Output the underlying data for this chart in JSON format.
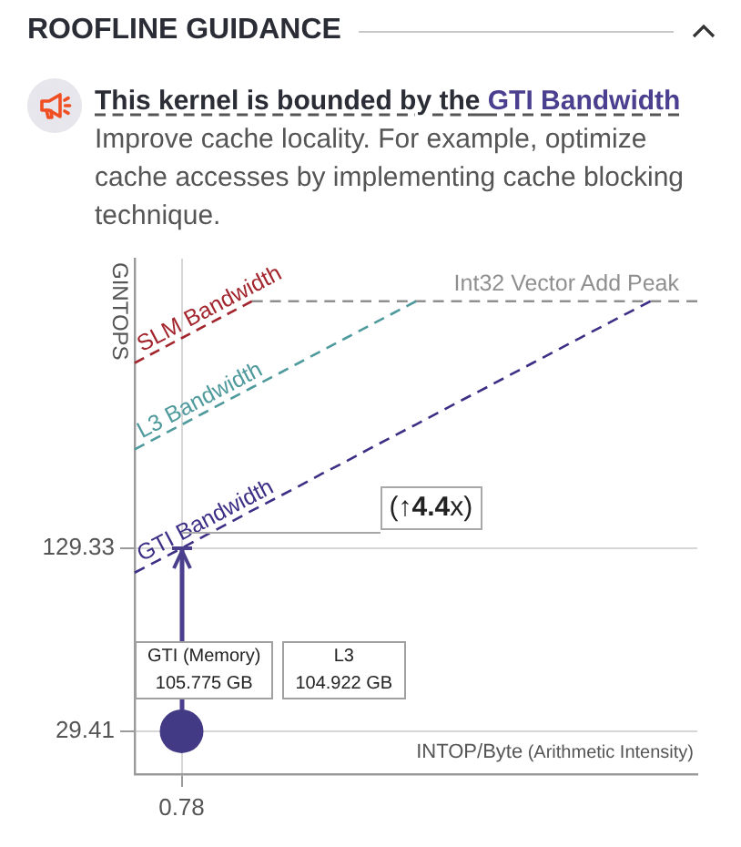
{
  "chart_data": {
    "type": "line",
    "title": "ROOFLINE GUIDANCE",
    "subtitle": "This kernel is bounded by the GTI Bandwidth",
    "xlabel": "INTOP/Byte (Arithmetic Intensity)",
    "ylabel": "GINTOPS",
    "annotations": [
      "Improve cache locality. For example, optimize cache accesses by implementing cache blocking technique.",
      {
        "text": "(↑4.4x)",
        "x": "0.78",
        "y": 129.33
      },
      "GTI (Memory)\n105.775 GB",
      "L3\n104.922 GB"
    ],
    "categories": [
      null,
      null,
      "0.78",
      null,
      null,
      null,
      null,
      null,
      null,
      null,
      null,
      null,
      null,
      null,
      null,
      null,
      null,
      null,
      null,
      null,
      null,
      null,
      null,
      null,
      null
    ],
    "series": [
      {
        "name": "SLM Bandwidth",
        "color": "#a3262e",
        "values": [
          577,
          638,
          705,
          779,
          860,
          950,
          null,
          null,
          null,
          null,
          null,
          null,
          null,
          null,
          null,
          null,
          null,
          null,
          null,
          null,
          null,
          null,
          null,
          null,
          null
        ]
      },
      {
        "name": "L3 Bandwidth",
        "color": "#4f9a9c",
        "values": [
          287,
          317,
          350,
          387,
          428,
          473,
          522,
          577,
          638,
          705,
          779,
          860,
          950,
          null,
          null,
          null,
          null,
          null,
          null,
          null,
          null,
          null,
          null,
          null,
          null
        ]
      },
      {
        "name": "GTI Bandwidth",
        "color": "#3d2f86",
        "values": [
          106,
          117,
          129,
          143,
          158,
          175,
          193,
          213,
          236,
          260,
          288,
          318,
          351,
          388,
          429,
          473,
          523,
          578,
          639,
          706,
          780,
          861,
          950,
          null,
          null
        ]
      },
      {
        "name": "Int32 Vector Add Peak",
        "color": "#8f8f8f",
        "values": [
          null,
          null,
          null,
          null,
          null,
          950,
          950,
          950,
          950,
          950,
          950,
          950,
          950,
          950,
          950,
          950,
          950,
          950,
          950,
          950,
          950,
          950,
          950,
          950,
          950
        ]
      },
      {
        "type": "scatter",
        "color": "#433a85",
        "marker": "circle",
        "values": [
          null,
          null,
          29.41,
          null,
          null,
          null,
          null,
          null,
          null,
          null,
          null,
          null,
          null,
          null,
          null,
          null,
          null,
          null,
          null,
          null,
          null,
          null,
          null,
          null,
          null
        ]
      }
    ],
    "ylim": [
      20.8,
      1340
    ],
    "yticks": [
      29.41,
      129.33
    ],
    "log": "y",
    "grid": true,
    "legend": false,
    "line_style": "dashed"
  }
}
